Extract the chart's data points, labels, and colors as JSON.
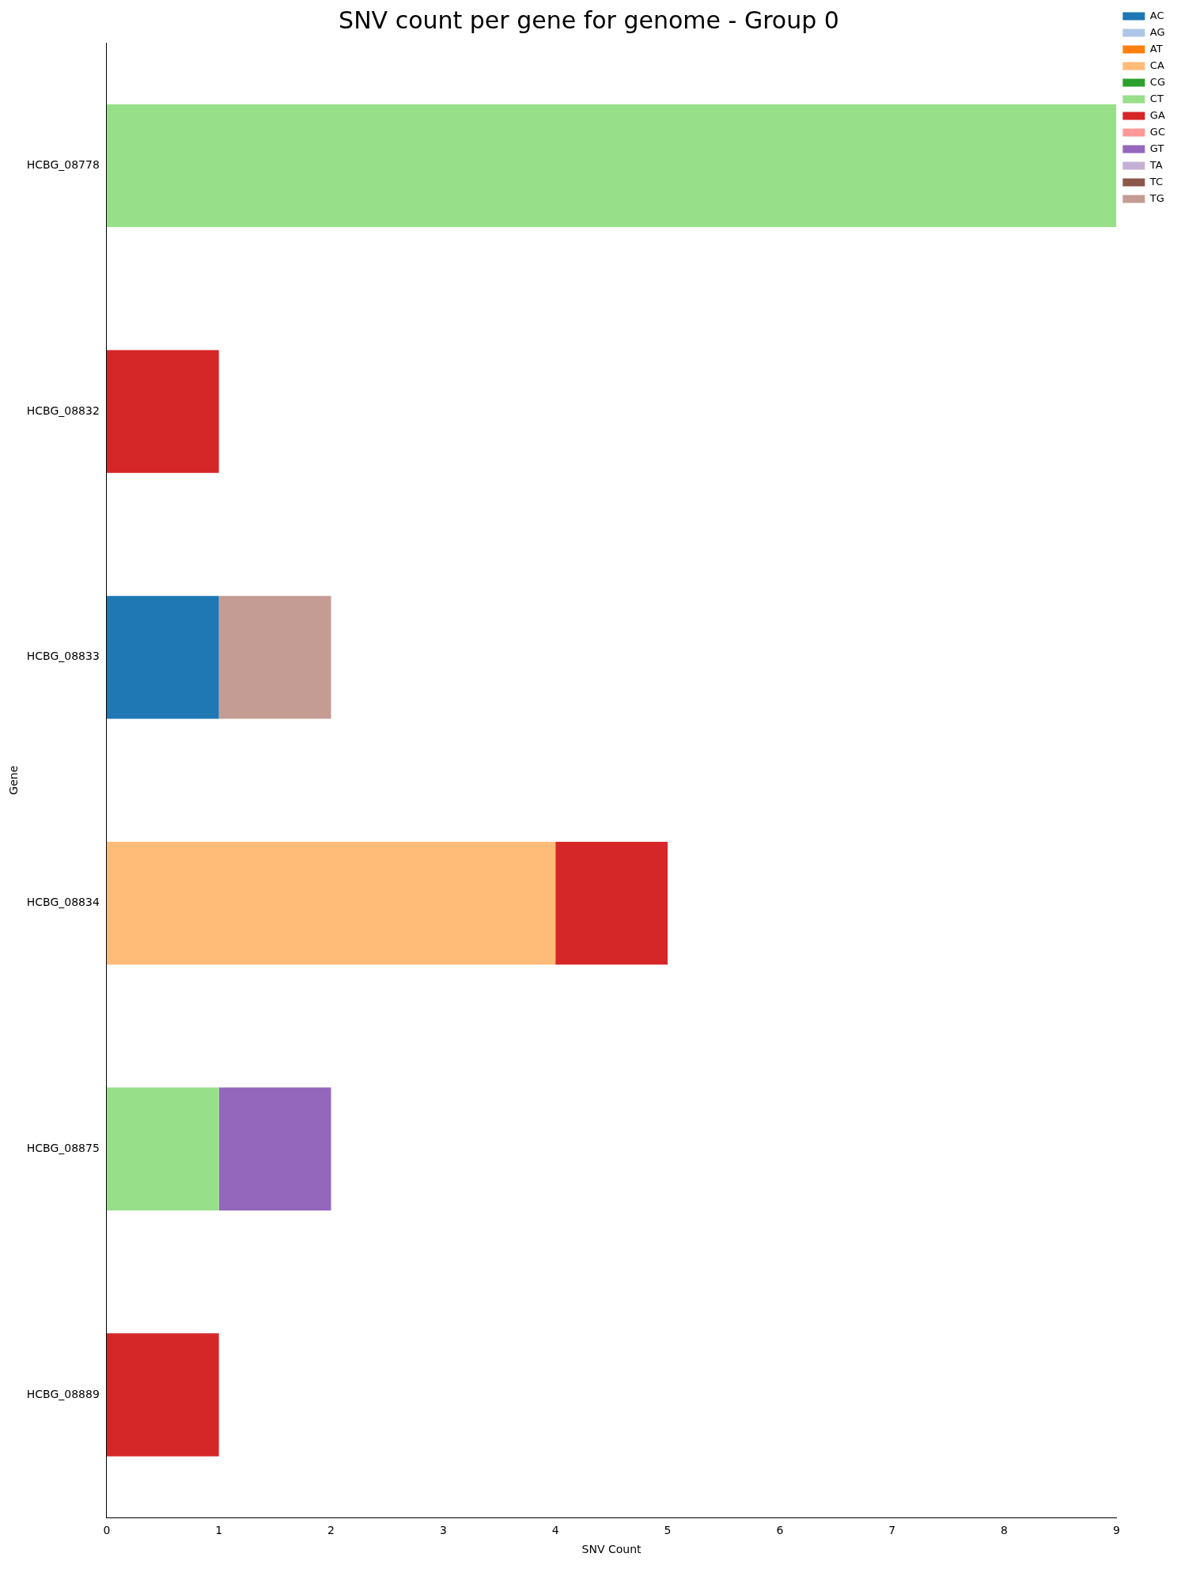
{
  "chart_data": {
    "type": "bar",
    "orientation": "horizontal",
    "stacked": true,
    "title": "SNV count per gene for genome - Group 0",
    "xlabel": "SNV Count",
    "ylabel": "Gene",
    "categories": [
      "HCBG_08778",
      "HCBG_08832",
      "HCBG_08833",
      "HCBG_08834",
      "HCBG_08875",
      "HCBG_08889"
    ],
    "series": [
      {
        "name": "AC",
        "color": "#1f77b4",
        "values": [
          0,
          0,
          1,
          0,
          0,
          0
        ]
      },
      {
        "name": "AG",
        "color": "#aec7e8",
        "values": [
          0,
          0,
          0,
          0,
          0,
          0
        ]
      },
      {
        "name": "AT",
        "color": "#ff7f0e",
        "values": [
          0,
          0,
          0,
          0,
          0,
          0
        ]
      },
      {
        "name": "CA",
        "color": "#ffbb78",
        "values": [
          0,
          0,
          0,
          4,
          0,
          0
        ]
      },
      {
        "name": "CG",
        "color": "#2ca02c",
        "values": [
          0,
          0,
          0,
          0,
          0,
          0
        ]
      },
      {
        "name": "CT",
        "color": "#98df8a",
        "values": [
          9,
          0,
          0,
          0,
          1,
          0
        ]
      },
      {
        "name": "GA",
        "color": "#d62728",
        "values": [
          0,
          1,
          0,
          1,
          0,
          1
        ]
      },
      {
        "name": "GC",
        "color": "#ff9896",
        "values": [
          0,
          0,
          0,
          0,
          0,
          0
        ]
      },
      {
        "name": "GT",
        "color": "#9467bd",
        "values": [
          0,
          0,
          0,
          0,
          1,
          0
        ]
      },
      {
        "name": "TA",
        "color": "#c5b0d5",
        "values": [
          0,
          0,
          0,
          0,
          0,
          0
        ]
      },
      {
        "name": "TC",
        "color": "#8c564b",
        "values": [
          0,
          0,
          0,
          0,
          0,
          0
        ]
      },
      {
        "name": "TG",
        "color": "#c49c94",
        "values": [
          0,
          0,
          1,
          0,
          0,
          0
        ]
      }
    ],
    "xlim": [
      0,
      9
    ],
    "xticks": [
      0,
      1,
      2,
      3,
      4,
      5,
      6,
      7,
      8,
      9
    ],
    "grid": false,
    "legend": "top right"
  }
}
